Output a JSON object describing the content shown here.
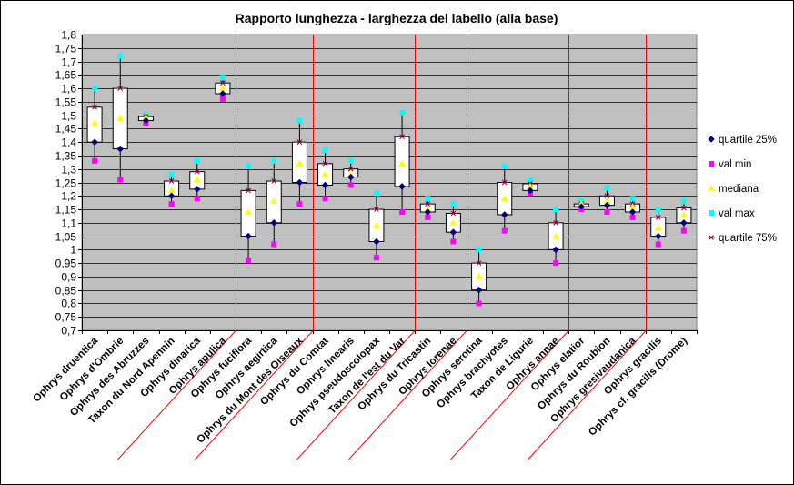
{
  "chart_data": {
    "type": "box",
    "title": "Rapporto lunghezza - larghezza del labello (alla base)",
    "ylim": [
      0.7,
      1.8
    ],
    "ystep": 0.05,
    "y_tick_labels": [
      "0,7",
      "0,75",
      "0,8",
      "0,85",
      "0,9",
      "0,95",
      "1",
      "1,05",
      "1,1",
      "1,15",
      "1,2",
      "1,25",
      "1,3",
      "1,35",
      "1,4",
      "1,45",
      "1,5",
      "1,55",
      "1,6",
      "1,65",
      "1,7",
      "1,75",
      "1,8"
    ],
    "categories": [
      "Ophrys druentica",
      "Ophrys d'Ombrie",
      "Ophrys des Abruzzes",
      "Taxon du Nord Apennin",
      "Ophrys dinarica",
      "Ophrys apulica",
      "Ophrys fuciflora",
      "Ophrys aegirtica",
      "Ophrys du Mont des Oiseaux",
      "Ophrys du Comtat",
      "Ophrys linearis",
      "Ophrys pseudoscolopax",
      "Taxon de l'est du Var",
      "Ophrys du Tricastin",
      "Ophrys lorenae",
      "Ophrys serotina",
      "Ophrys brachyotes",
      "Taxon de Ligurie",
      "Ophrys annae",
      "Ophrys elatior",
      "Ophrys du Roubion",
      "Ophrys gresivaudanica",
      "Ophrys gracilis",
      "Ophrys cf. gracilis (Drome)"
    ],
    "group_separators_after": [
      6,
      9,
      13,
      15,
      19,
      22
    ],
    "series": [
      {
        "name": "quartile 25%",
        "color": "#00007a",
        "marker": "diamond",
        "values": [
          1.4,
          1.375,
          1.48,
          1.2,
          1.225,
          1.58,
          1.05,
          1.1,
          1.25,
          1.24,
          1.27,
          1.03,
          1.235,
          1.14,
          1.065,
          0.85,
          1.13,
          1.22,
          1.0,
          1.16,
          1.165,
          1.14,
          1.05,
          1.1
        ]
      },
      {
        "name": "val min",
        "color": "#ff00ff",
        "marker": "square",
        "values": [
          1.33,
          1.26,
          1.47,
          1.17,
          1.19,
          1.56,
          0.96,
          1.02,
          1.17,
          1.19,
          1.24,
          0.97,
          1.14,
          1.12,
          1.03,
          0.8,
          1.07,
          1.21,
          0.95,
          1.15,
          1.14,
          1.12,
          1.02,
          1.07
        ]
      },
      {
        "name": "mediana",
        "color": "#ffff00",
        "marker": "triangle",
        "values": [
          1.47,
          1.49,
          1.49,
          1.22,
          1.26,
          1.6,
          1.14,
          1.18,
          1.32,
          1.28,
          1.28,
          1.09,
          1.32,
          1.15,
          1.1,
          0.9,
          1.19,
          1.235,
          1.05,
          1.17,
          1.18,
          1.16,
          1.08,
          1.13
        ]
      },
      {
        "name": "val max",
        "color": "#00ffff",
        "marker": "square",
        "values": [
          1.6,
          1.72,
          1.5,
          1.28,
          1.33,
          1.64,
          1.31,
          1.33,
          1.48,
          1.37,
          1.33,
          1.21,
          1.51,
          1.19,
          1.17,
          1.0,
          1.31,
          1.26,
          1.15,
          1.18,
          1.23,
          1.19,
          1.15,
          1.18
        ]
      },
      {
        "name": "quartile 75%",
        "color": "#800040",
        "marker": "star",
        "values": [
          1.53,
          1.6,
          1.495,
          1.255,
          1.29,
          1.62,
          1.22,
          1.255,
          1.4,
          1.32,
          1.3,
          1.15,
          1.42,
          1.17,
          1.135,
          0.95,
          1.25,
          1.245,
          1.1,
          1.17,
          1.2,
          1.17,
          1.12,
          1.155
        ]
      }
    ],
    "legend_position": "right",
    "plot_background": "#c0c0c0",
    "grid": true
  }
}
